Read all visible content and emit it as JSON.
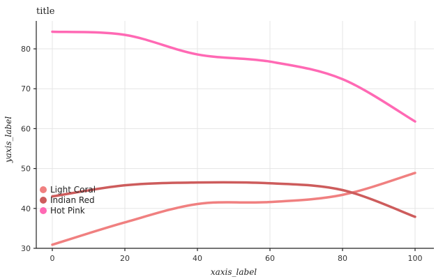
{
  "chart_data": {
    "type": "line",
    "title": "title",
    "xlabel": "xaxis_label",
    "ylabel": "yaxis_label",
    "xlim": [
      0,
      100
    ],
    "ylim": [
      30,
      87
    ],
    "xticks": [
      0,
      20,
      40,
      60,
      80,
      100
    ],
    "yticks": [
      30,
      40,
      50,
      60,
      70,
      80
    ],
    "grid": true,
    "legend_position": "middle-left",
    "x": [
      0,
      20,
      40,
      60,
      80,
      100
    ],
    "series": [
      {
        "name": "Light Coral",
        "color": "#f08080",
        "values": [
          30.9,
          36.5,
          41.1,
          41.6,
          43.4,
          48.9
        ]
      },
      {
        "name": "Indian Red",
        "color": "#cd5c5c",
        "values": [
          43.0,
          45.8,
          46.5,
          46.3,
          44.6,
          37.9
        ]
      },
      {
        "name": "Hot Pink",
        "color": "#ff69b4",
        "values": [
          84.3,
          83.5,
          78.6,
          76.8,
          72.4,
          61.8
        ]
      }
    ]
  }
}
